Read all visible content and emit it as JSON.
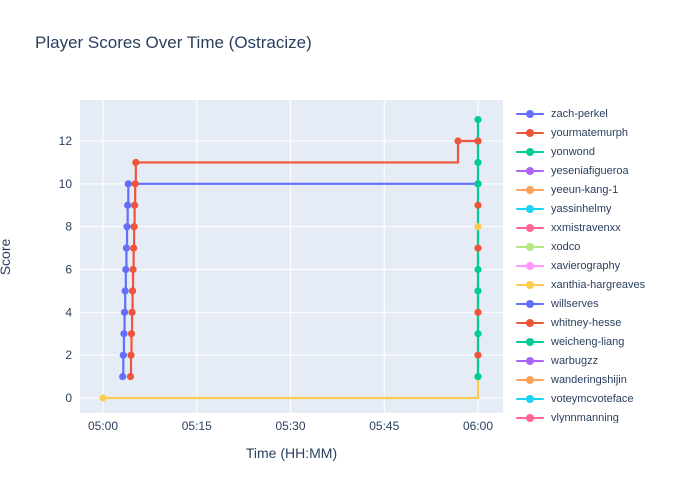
{
  "title": "Player Scores Over Time (Ostracize)",
  "colors": {
    "background": "#ffffff",
    "plot_background": "#E5ECF6",
    "gridline": "#ffffff",
    "text": "#2a3f5f"
  },
  "legend": {
    "items": [
      {
        "label": "zach-perkel",
        "color": "#636EFA"
      },
      {
        "label": "yourmatemurph",
        "color": "#EF553B"
      },
      {
        "label": "yonwond",
        "color": "#00CC96"
      },
      {
        "label": "yeseniafigueroa",
        "color": "#AB63FA"
      },
      {
        "label": "yeeun-kang-1",
        "color": "#FFA15A"
      },
      {
        "label": "yassinhelmy",
        "color": "#19D3F3"
      },
      {
        "label": "xxmistravenxx",
        "color": "#FF6692"
      },
      {
        "label": "xodco",
        "color": "#B6E880"
      },
      {
        "label": "xavierography",
        "color": "#FF97FF"
      },
      {
        "label": "xanthia-hargreaves",
        "color": "#FECB52"
      },
      {
        "label": "willserves",
        "color": "#636EFA"
      },
      {
        "label": "whitney-hesse",
        "color": "#EF553B"
      },
      {
        "label": "weicheng-liang",
        "color": "#00CC96"
      },
      {
        "label": "warbugzz",
        "color": "#AB63FA"
      },
      {
        "label": "wanderingshijin",
        "color": "#FFA15A"
      },
      {
        "label": "voteymcvoteface",
        "color": "#19D3F3"
      },
      {
        "label": "vlynnmanning",
        "color": "#FF6692"
      }
    ]
  },
  "chart_data": {
    "type": "line",
    "title": "Player Scores Over Time (Ostracize)",
    "xlabel": "Time (HH:MM)",
    "ylabel": "Score",
    "line_shape": "hv",
    "grid": true,
    "legend_position": "right",
    "x_axis": {
      "unit": "minutes after 05:00",
      "range": [
        -3.7,
        64
      ],
      "ticks": [
        {
          "v": 0,
          "label": "05:00"
        },
        {
          "v": 15,
          "label": "05:15"
        },
        {
          "v": 30,
          "label": "05:30"
        },
        {
          "v": 45,
          "label": "05:45"
        },
        {
          "v": 60,
          "label": "06:00"
        }
      ]
    },
    "y_axis": {
      "range": [
        -0.75,
        13.9
      ],
      "ticks": [
        {
          "v": 0,
          "label": "0"
        },
        {
          "v": 2,
          "label": "2"
        },
        {
          "v": 4,
          "label": "4"
        },
        {
          "v": 6,
          "label": "6"
        },
        {
          "v": 8,
          "label": "8"
        },
        {
          "v": 10,
          "label": "10"
        },
        {
          "v": 12,
          "label": "12"
        }
      ]
    },
    "series": [
      {
        "name": "zach-perkel",
        "color": "#636EFA",
        "points": [
          [
            3.15,
            1
          ],
          [
            3.25,
            2
          ],
          [
            3.35,
            3
          ],
          [
            3.45,
            4
          ],
          [
            3.55,
            5
          ],
          [
            3.65,
            6
          ],
          [
            3.75,
            7
          ],
          [
            3.85,
            8
          ],
          [
            3.95,
            9
          ],
          [
            4.05,
            10
          ],
          [
            60,
            10
          ]
        ]
      },
      {
        "name": "yourmatemurph",
        "color": "#EF553B",
        "points": [
          [
            4.4,
            1
          ],
          [
            4.48,
            2
          ],
          [
            4.56,
            3
          ],
          [
            4.65,
            4
          ],
          [
            4.73,
            5
          ],
          [
            4.81,
            6
          ],
          [
            4.9,
            7
          ],
          [
            4.98,
            8
          ],
          [
            5.06,
            9
          ],
          [
            5.15,
            10
          ],
          [
            5.25,
            11
          ],
          [
            56.8,
            12
          ],
          [
            60,
            12
          ]
        ]
      },
      {
        "name": "yonwond",
        "color": "#00CC96",
        "points": [
          [
            60,
            1
          ],
          [
            60,
            3
          ],
          [
            60,
            5
          ],
          [
            60,
            6
          ],
          [
            60,
            10
          ],
          [
            60,
            11
          ],
          [
            60,
            13
          ]
        ]
      },
      {
        "name": "xanthia-hargreaves",
        "color": "#FECB52",
        "points": [
          [
            0,
            0
          ],
          [
            60,
            8
          ]
        ]
      },
      {
        "name": "whitney-hesse",
        "color": "#EF553B",
        "points": [
          [
            60,
            2
          ],
          [
            60,
            4
          ],
          [
            60,
            7
          ],
          [
            60,
            9
          ],
          [
            60,
            12
          ]
        ]
      }
    ],
    "render_layers": [
      {
        "series": "zach-perkel",
        "line": true,
        "markers": "all"
      },
      {
        "series": "yourmatemurph",
        "line": true,
        "markers": "all"
      },
      {
        "series": "xanthia-hargreaves",
        "line": true,
        "markers": [
          [
            0,
            0
          ]
        ]
      },
      {
        "series": "yonwond",
        "line": true,
        "markers": "all"
      },
      {
        "series": "whitney-hesse",
        "line": false,
        "markers": "all"
      },
      {
        "series": "xanthia-hargreaves",
        "line": false,
        "markers": [
          [
            60,
            8
          ]
        ]
      }
    ]
  }
}
